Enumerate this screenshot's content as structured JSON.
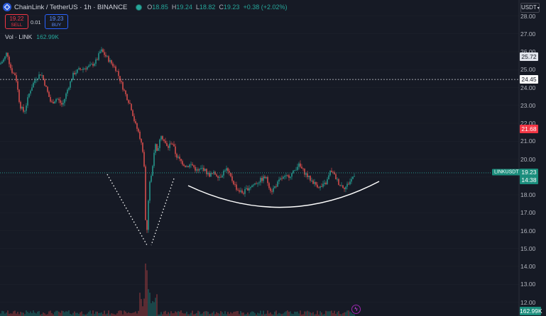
{
  "header": {
    "title": "ChainLink / TetherUS · 1h · BINANCE",
    "ohlc": [
      {
        "key": "O",
        "value": "18.85"
      },
      {
        "key": "H",
        "value": "19.24"
      },
      {
        "key": "L",
        "value": "18.82"
      },
      {
        "key": "C",
        "value": "19.23"
      }
    ],
    "change": "+0.38 (+2.02%)"
  },
  "trade": {
    "sell_price": "19.22",
    "sell_label": "SELL",
    "spread": "0.01",
    "buy_price": "19.23",
    "buy_label": "BUY"
  },
  "volume": {
    "label": "Vol · LINK",
    "value": "162.99K"
  },
  "currency": "USDT",
  "axis_ticks": [
    "28.00",
    "27.00",
    "26.00",
    "25.00",
    "24.00",
    "23.00",
    "22.00",
    "21.00",
    "20.00",
    "19.00",
    "18.00",
    "17.00",
    "16.00",
    "15.00",
    "14.00",
    "13.00",
    "12.00"
  ],
  "price_labels": {
    "mark_high": "25.72",
    "crosshair": "24.45",
    "red_level": "21.68",
    "last_price": "19.23",
    "countdown": "14:38",
    "symbol": "LINKUSDT",
    "volume_value": "162.99K"
  },
  "colors": {
    "up": "#26a69a",
    "down": "#ef5350",
    "background": "#161a25"
  },
  "icons": {
    "symbol": "chainlink-logo-icon",
    "status": "market-open-dot-icon",
    "alert": "lightning-icon"
  },
  "chart_data": {
    "type": "candlestick",
    "y_range": [
      11.5,
      28.4
    ],
    "price_path": [
      [
        0,
        25.3
      ],
      [
        6,
        25.6
      ],
      [
        10,
        26.0
      ],
      [
        14,
        25.2
      ],
      [
        18,
        24.8
      ],
      [
        22,
        24.7
      ],
      [
        28,
        23.0
      ],
      [
        34,
        22.6
      ],
      [
        42,
        23.8
      ],
      [
        50,
        24.5
      ],
      [
        58,
        24.8
      ],
      [
        64,
        24.1
      ],
      [
        72,
        23.1
      ],
      [
        80,
        23.4
      ],
      [
        88,
        23.0
      ],
      [
        96,
        24.0
      ],
      [
        104,
        24.8
      ],
      [
        112,
        25.0
      ],
      [
        120,
        25.1
      ],
      [
        128,
        25.2
      ],
      [
        136,
        25.5
      ],
      [
        142,
        26.1
      ],
      [
        148,
        25.8
      ],
      [
        156,
        25.4
      ],
      [
        164,
        25.0
      ],
      [
        172,
        24.1
      ],
      [
        178,
        23.5
      ],
      [
        184,
        23.0
      ],
      [
        190,
        22.0
      ],
      [
        196,
        21.4
      ],
      [
        200,
        20.7
      ],
      [
        203,
        19.6
      ],
      [
        206,
        15.1
      ],
      [
        210,
        18.6
      ],
      [
        214,
        19.2
      ],
      [
        218,
        20.9
      ],
      [
        222,
        20.2
      ],
      [
        226,
        21.5
      ],
      [
        230,
        21.1
      ],
      [
        236,
        20.6
      ],
      [
        242,
        21.0
      ],
      [
        248,
        20.2
      ],
      [
        254,
        19.9
      ],
      [
        262,
        19.6
      ],
      [
        270,
        19.7
      ],
      [
        278,
        19.3
      ],
      [
        286,
        19.5
      ],
      [
        294,
        19.1
      ],
      [
        302,
        19.2
      ],
      [
        310,
        19.0
      ],
      [
        318,
        19.5
      ],
      [
        326,
        18.9
      ],
      [
        334,
        18.3
      ],
      [
        342,
        18.1
      ],
      [
        350,
        18.4
      ],
      [
        358,
        18.6
      ],
      [
        366,
        18.8
      ],
      [
        374,
        19.0
      ],
      [
        382,
        18.2
      ],
      [
        388,
        18.5
      ],
      [
        396,
        18.9
      ],
      [
        404,
        19.0
      ],
      [
        412,
        19.2
      ],
      [
        420,
        19.7
      ],
      [
        428,
        19.3
      ],
      [
        436,
        18.9
      ],
      [
        444,
        18.6
      ],
      [
        452,
        18.4
      ],
      [
        460,
        18.7
      ],
      [
        466,
        19.4
      ],
      [
        472,
        19.0
      ],
      [
        478,
        18.6
      ],
      [
        486,
        18.4
      ],
      [
        494,
        18.8
      ],
      [
        500,
        19.23
      ]
    ],
    "annotations": {
      "price_levels": [
        24.45,
        19.23
      ],
      "drawings": [
        "v-shaped dotted lines",
        "rounded bottom arc"
      ]
    }
  }
}
